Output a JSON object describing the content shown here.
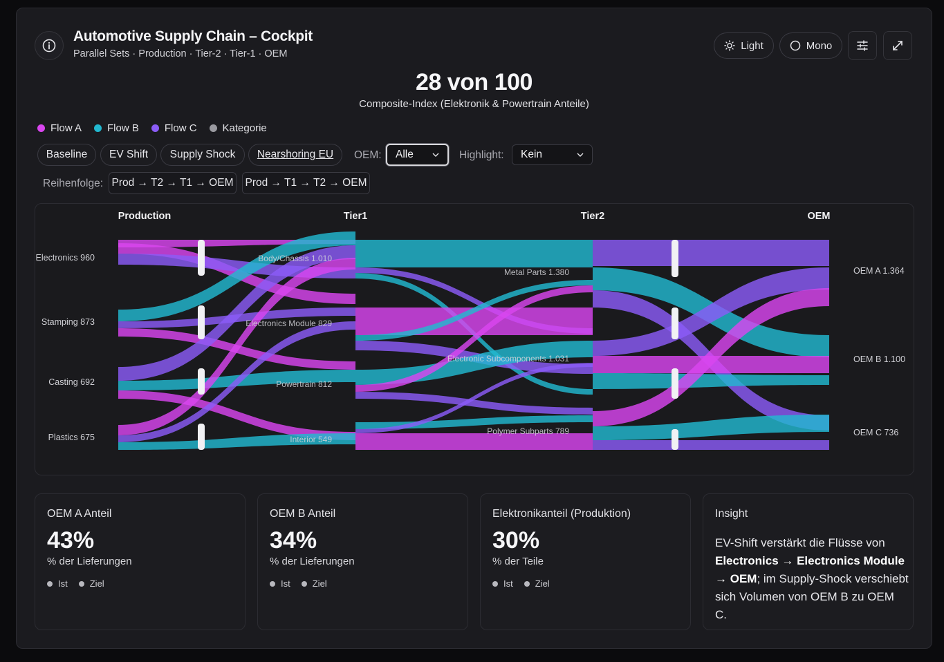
{
  "header": {
    "title": "Automotive Supply Chain – Cockpit",
    "subtitle": "Parallel Sets · Production · Tier-2 · Tier-1 · OEM",
    "light_label": "Light",
    "mono_label": "Mono"
  },
  "kpi": {
    "value": "28 von 100",
    "label": "Composite-Index (Elektronik & Powertrain Anteile)"
  },
  "legend": [
    {
      "label": "Flow A",
      "color": "#d946ef"
    },
    {
      "label": "Flow B",
      "color": "#22b8cf"
    },
    {
      "label": "Flow C",
      "color": "#8b5cf6"
    },
    {
      "label": "Kategorie",
      "color": "#9a9aa0"
    }
  ],
  "scenarios": [
    "Baseline",
    "EV Shift",
    "Supply Shock",
    "Nearshoring EU"
  ],
  "filters": {
    "oem_label": "OEM:",
    "oem_value": "Alle",
    "highlight_label": "Highlight:",
    "highlight_value": "Kein"
  },
  "order": {
    "label": "Reihenfolge:",
    "options": [
      "Prod → T2 → T1 → OEM",
      "Prod → T1 → T2 → OEM"
    ]
  },
  "chart_data": {
    "type": "parallel-sets",
    "axes": [
      "Production",
      "Tier1",
      "Tier2",
      "OEM"
    ],
    "nodes": {
      "production": [
        {
          "label": "Electronics 960"
        },
        {
          "label": "Stamping 873"
        },
        {
          "label": "Casting 692"
        },
        {
          "label": "Plastics 675"
        }
      ],
      "tier1": [
        {
          "label": "Body/Chassis 1.010"
        },
        {
          "label": "Electronics Module 829"
        },
        {
          "label": "Powertrain 812"
        },
        {
          "label": "Interior 549"
        }
      ],
      "tier2": [
        {
          "label": "Metal Parts 1.380"
        },
        {
          "label": "Electronic Subcomponents 1.031"
        },
        {
          "label": "Polymer Subparts 789"
        }
      ],
      "oem": [
        {
          "label": "OEM A 1.364"
        },
        {
          "label": "OEM B 1.100"
        },
        {
          "label": "OEM C 736"
        }
      ]
    }
  },
  "cards": [
    {
      "title": "OEM A Anteil",
      "value": "43%",
      "sub": "% der Lieferungen",
      "legend": [
        "Ist",
        "Ziel"
      ]
    },
    {
      "title": "OEM B Anteil",
      "value": "34%",
      "sub": "% der Lieferungen",
      "legend": [
        "Ist",
        "Ziel"
      ]
    },
    {
      "title": "Elektronikanteil (Produktion)",
      "value": "30%",
      "sub": "% der Teile",
      "legend": [
        "Ist",
        "Ziel"
      ]
    }
  ],
  "insight": {
    "title": "Insight",
    "t1": "EV-Shift verstärkt die Flüsse von ",
    "b1": "Electronics → Electronics Module → OEM",
    "t2": "; im Supply-Shock verschiebt sich Volumen von OEM B zu OEM C."
  }
}
